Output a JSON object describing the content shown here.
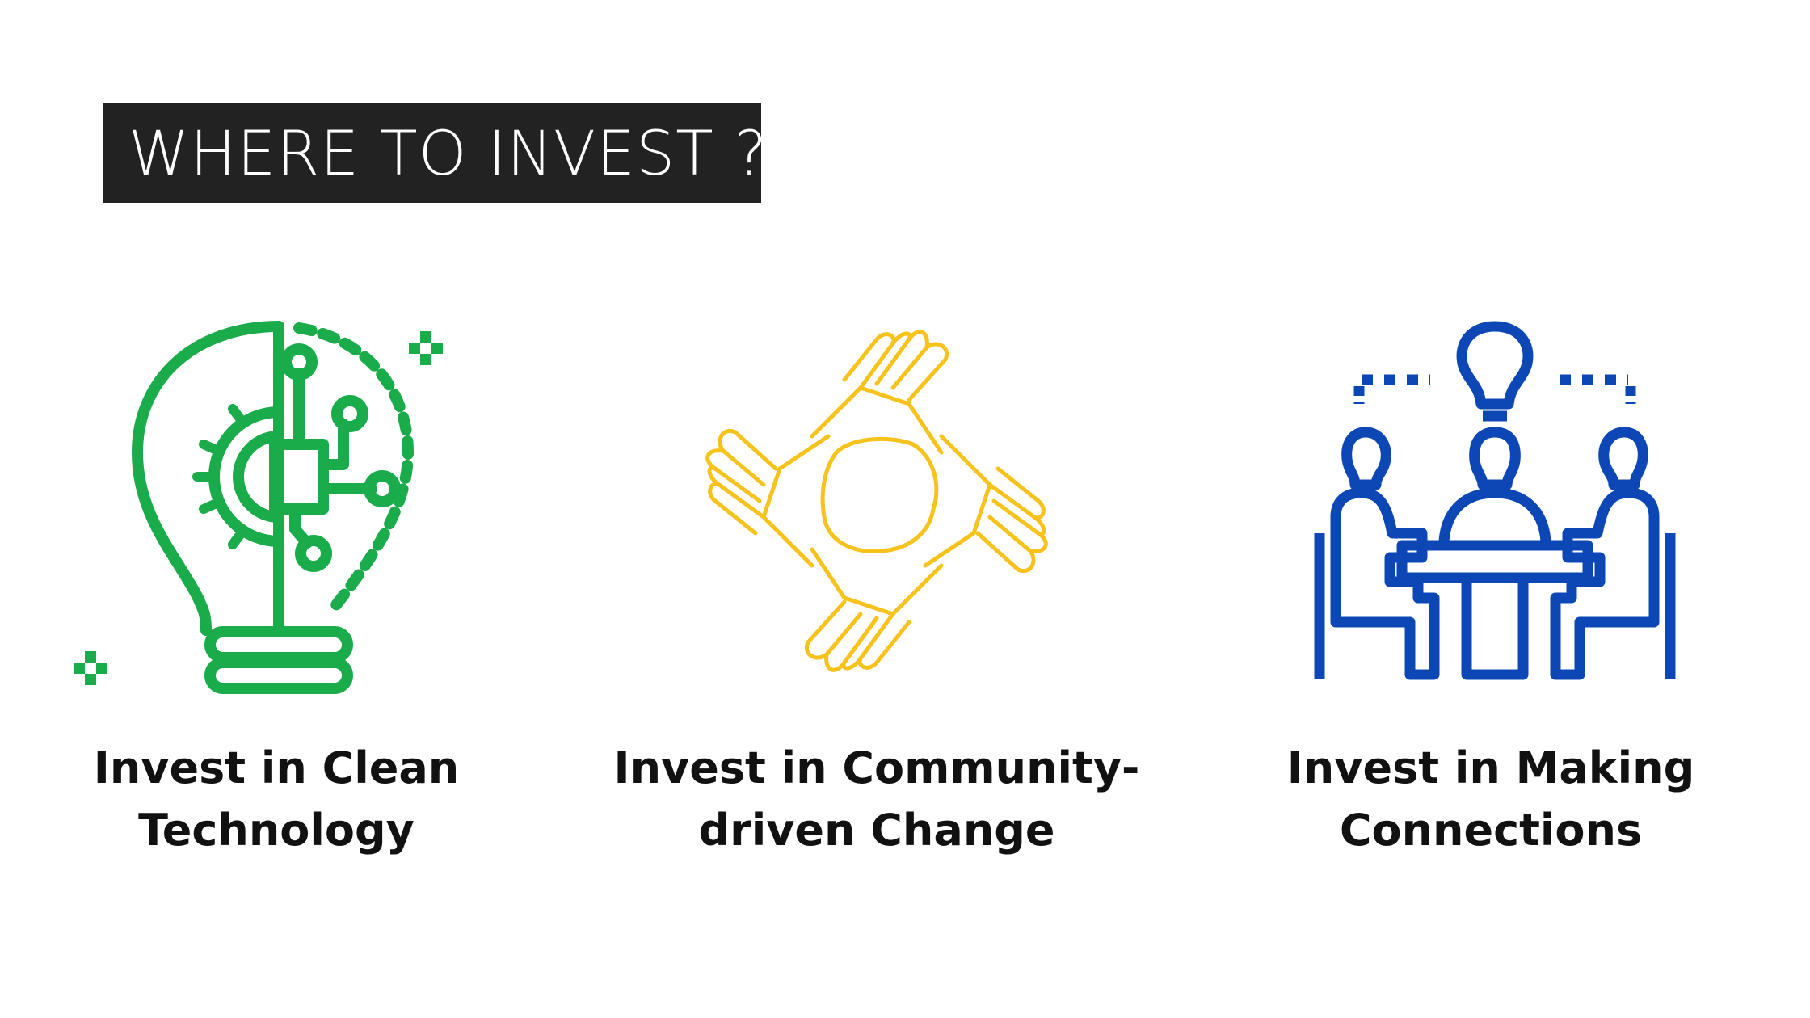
{
  "title": "WHERE TO INVEST ?",
  "colors": {
    "title_bg": "#222222",
    "title_text": "#ffffff",
    "clean_tech": "#1aab4b",
    "community": "#f7c21b",
    "connections": "#0d47b5"
  },
  "items": [
    {
      "line1": "Invest in Clean",
      "line2": "Technology",
      "icon": "lightbulb-circuit-gear-icon"
    },
    {
      "line1": "Invest in Community-",
      "line2": "driven Change",
      "icon": "four-hands-unity-icon"
    },
    {
      "line1": "Invest in Making",
      "line2": "Connections",
      "icon": "meeting-table-idea-icon"
    }
  ]
}
